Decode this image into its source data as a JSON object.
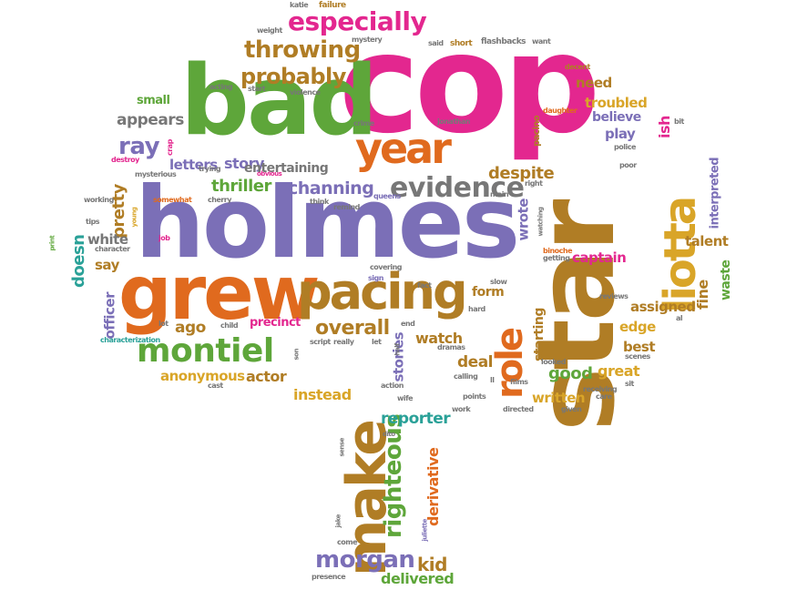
{
  "palette": {
    "purple": "#7b6fb7",
    "pink": "#e3278f",
    "green": "#5ea63a",
    "orange": "#e06a1e",
    "brown": "#b07d25",
    "gold": "#d9a528",
    "teal": "#2aa198",
    "gray": "#777777"
  },
  "words": {
    "holmes": "holmes",
    "cop": "cop",
    "bad": "bad",
    "star": "star",
    "grew": "grew",
    "pacing": "pacing",
    "make": "make",
    "liotta": "liotta",
    "year": "year",
    "role": "role",
    "montiel": "montiel",
    "evidence": "evidence",
    "especially": "especially",
    "throwing": "throwing",
    "probably": "probably",
    "channing": "channing",
    "righteous": "righteous",
    "morgan": "morgan",
    "kid": "kid",
    "delivered": "delivered",
    "reporter": "reporter",
    "instead": "instead",
    "overall": "overall",
    "thriller": "thriller",
    "story": "story",
    "ray": "ray",
    "appears": "appears",
    "letters": "letters",
    "entertaining": "entertaining",
    "pretty": "pretty",
    "white": "white",
    "doesn": "doesn",
    "officer": "officer",
    "say": "say",
    "anonymous": "anonymous",
    "actor": "actor",
    "ago": "ago",
    "precinct": "precinct",
    "despite": "despite",
    "wrote": "wrote",
    "starting": "starting",
    "deal": "deal",
    "watch": "watch",
    "form": "form",
    "stories": "stories",
    "derivative": "derivative",
    "good": "good",
    "written": "written",
    "great": "great",
    "best": "best",
    "edge": "edge",
    "assigned": "assigned",
    "captain": "captain",
    "fine": "fine",
    "waste": "waste",
    "talent": "talent",
    "interpreted": "interpreted",
    "need": "need",
    "troubled": "troubled",
    "believe": "believe",
    "play": "play",
    "ish": "ish",
    "small": "small",
    "pacino": "pacino",
    "weight": "weight",
    "katie": "katie",
    "failure": "failure",
    "mystery": "mystery",
    "said": "said",
    "short": "short",
    "flashbacks": "flashbacks",
    "want": "want",
    "decent": "decent",
    "daughter": "daughter",
    "bit": "bit",
    "police": "police",
    "poor": "poor",
    "acting": "acting",
    "start": "start",
    "violence": "violence",
    "crime": "crime",
    "jonathan": "jonathan",
    "destroy": "destroy",
    "crap": "crap",
    "trying": "trying",
    "mysterious": "mysterious",
    "obvious": "obvious",
    "somewhat": "somewhat",
    "cherry": "cherry",
    "think": "think",
    "queens": "queens",
    "remind": "remind",
    "main": "main",
    "right": "right",
    "watching": "watching",
    "getting": "getting",
    "binoche": "binoche",
    "working": "working",
    "tips": "tips",
    "young": "young",
    "character": "character",
    "job": "job",
    "print": "print",
    "covering": "covering",
    "sign": "sign",
    "fact": "fact",
    "slow": "slow",
    "reviews": "reviews",
    "al": "al",
    "hard": "hard",
    "lot": "lot",
    "child": "child",
    "end": "end",
    "characterization": "characterization",
    "script": "script",
    "really": "really",
    "let": "let",
    "half": "half",
    "dramas": "dramas",
    "son": "son",
    "cast": "cast",
    "action": "action",
    "calling": "calling",
    "ll": "ll",
    "films": "films",
    "looked": "looked",
    "scenes": "scenes",
    "sit": "sit",
    "receiving": "receiving",
    "care": "care",
    "wife": "wife",
    "points": "points",
    "directed": "directed",
    "given": "given",
    "work": "work",
    "sense": "sense",
    "dito": "dito",
    "jake": "jake",
    "juliette": "juliette",
    "come": "come",
    "presence": "presence"
  }
}
